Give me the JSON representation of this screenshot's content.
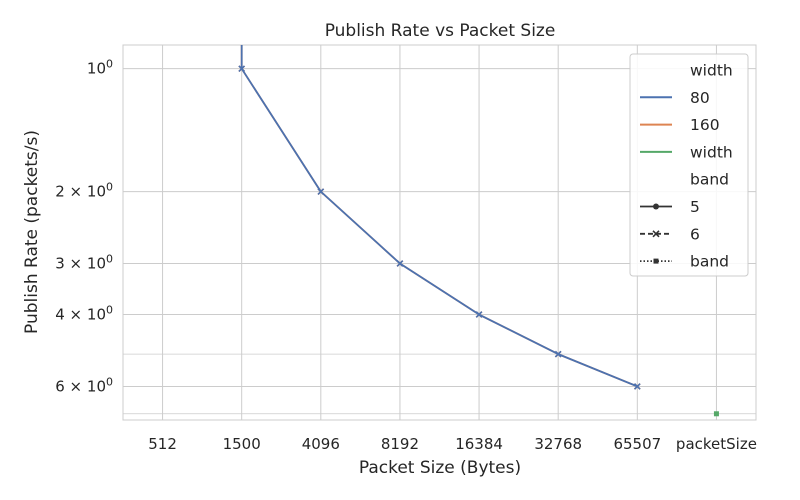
{
  "chart_data": {
    "type": "line",
    "title": "Publish Rate vs Packet Size",
    "xlabel": "Packet Size (Bytes)",
    "ylabel": "Publish Rate (packets/s)",
    "x_categories": [
      "512",
      "1500",
      "4096",
      "8192",
      "16384",
      "32768",
      "65507",
      "packetSize"
    ],
    "y_scale": "log (inverted)",
    "y_ticks": [
      {
        "value": 1,
        "base": "10",
        "exp": "0"
      },
      {
        "value": 2,
        "base": "2 × 10",
        "exp": "0"
      },
      {
        "value": 3,
        "base": "3 × 10",
        "exp": "0"
      },
      {
        "value": 4,
        "base": "4 × 10",
        "exp": "0"
      },
      {
        "value": 6,
        "base": "6 × 10",
        "exp": "0"
      }
    ],
    "y_minor_values": [
      5,
      7
    ],
    "ylim": [
      0.875,
      7.25
    ],
    "grid": true,
    "legend_placement": "top-right",
    "series": [
      {
        "name": "160",
        "band": "6",
        "color": "#dd8452",
        "marker": "x",
        "x": [
          "1500",
          "1500",
          "4096",
          "8192",
          "16384",
          "32768",
          "65507"
        ],
        "values": [
          0.875,
          1,
          2,
          3,
          4,
          5,
          6
        ],
        "markers_from_index": 1
      },
      {
        "name": "80",
        "band": "6",
        "color": "#4c72b0",
        "marker": "x",
        "x": [
          "1500",
          "1500",
          "4096",
          "8192",
          "16384",
          "32768",
          "65507"
        ],
        "values": [
          0.875,
          1,
          2,
          3,
          4,
          5,
          6
        ],
        "markers_from_index": 1
      },
      {
        "name": "width",
        "band": "band",
        "color": "#55a868",
        "marker": "square",
        "x": [
          "packetSize"
        ],
        "values": [
          7
        ],
        "markers_from_index": 0
      }
    ],
    "legend": [
      {
        "kind": "title",
        "label": "width"
      },
      {
        "kind": "hue",
        "label": "80",
        "color": "#4c72b0"
      },
      {
        "kind": "hue",
        "label": "160",
        "color": "#dd8452"
      },
      {
        "kind": "hue",
        "label": "width",
        "color": "#55a868"
      },
      {
        "kind": "title",
        "label": "band"
      },
      {
        "kind": "style",
        "label": "5",
        "dash": "solid",
        "marker": "circle"
      },
      {
        "kind": "style",
        "label": "6",
        "dash": "dashed",
        "marker": "x"
      },
      {
        "kind": "style",
        "label": "band",
        "dash": "dotted",
        "marker": "square"
      }
    ]
  }
}
